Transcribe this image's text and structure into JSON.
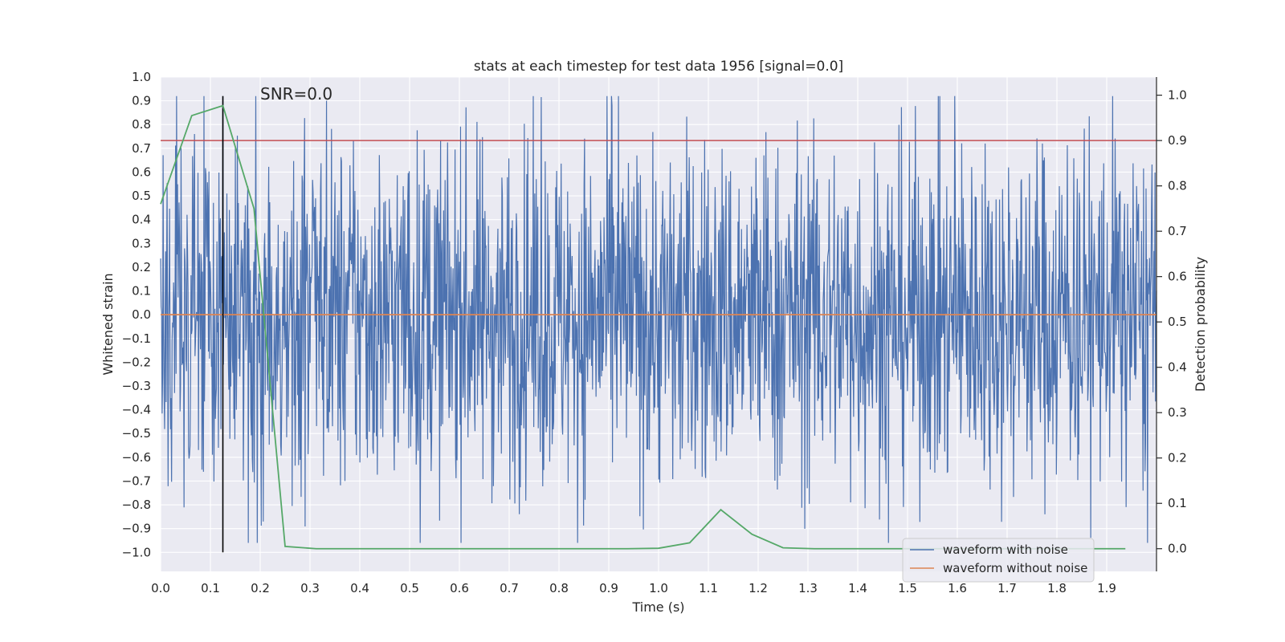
{
  "chart_data": {
    "type": "line",
    "title": "stats at each timestep for test data 1956 [signal=0.0]",
    "annotation": "SNR=0.0",
    "xlabel": "Time (s)",
    "ylabel_left": "Whitened strain",
    "ylabel_right": "Detection probability",
    "xlim": [
      0.0,
      2.0
    ],
    "ylim_left": [
      -1.08,
      1.0
    ],
    "ylim_right": [
      -0.05,
      1.04
    ],
    "x_ticks": [
      "0.0",
      "0.1",
      "0.2",
      "0.3",
      "0.4",
      "0.5",
      "0.6",
      "0.7",
      "0.8",
      "0.9",
      "1.0",
      "1.1",
      "1.2",
      "1.3",
      "1.4",
      "1.5",
      "1.6",
      "1.7",
      "1.8",
      "1.9"
    ],
    "y_left_ticks": [
      "1.0",
      "0.9",
      "0.8",
      "0.7",
      "0.6",
      "0.5",
      "0.4",
      "0.3",
      "0.2",
      "0.1",
      "0.0",
      "−0.1",
      "−0.2",
      "−0.3",
      "−0.4",
      "−0.5",
      "−0.6",
      "−0.7",
      "−0.8",
      "−0.9",
      "−1.0"
    ],
    "y_right_ticks": [
      "1.0",
      "0.9",
      "0.8",
      "0.7",
      "0.6",
      "0.5",
      "0.4",
      "0.3",
      "0.2",
      "0.1",
      "0.0"
    ],
    "grid": true,
    "legend_position": "bottom-right",
    "colors": {
      "noise": "#4c72b0",
      "clean": "#dd8452",
      "probability": "#55a868",
      "threshold": "#c44e52",
      "marker": "#000000",
      "background": "#eaeaf2",
      "grid": "#ffffff"
    },
    "series": [
      {
        "name": "waveform with noise",
        "axis": "left",
        "sample_count": 2000,
        "x_range": [
          0.0,
          2.0
        ],
        "value_range": [
          -0.96,
          0.92
        ],
        "note": "dense whitened-noise trace, values approximately within the observed range"
      },
      {
        "name": "waveform without noise",
        "axis": "left",
        "x": [
          0.0,
          2.0
        ],
        "values": [
          0.0,
          0.0
        ]
      },
      {
        "name": "detection probability",
        "axis": "right",
        "x": [
          0.0,
          0.0625,
          0.125,
          0.1875,
          0.25,
          0.3125,
          0.375,
          0.4375,
          0.5,
          0.5625,
          0.625,
          0.6875,
          0.75,
          0.8125,
          0.875,
          0.9375,
          1.0,
          1.0625,
          1.125,
          1.1875,
          1.25,
          1.3125,
          1.375,
          1.4375,
          1.5,
          1.5625,
          1.625,
          1.6875,
          1.75,
          1.8125,
          1.875,
          1.9375
        ],
        "values": [
          0.76,
          0.955,
          0.977,
          0.75,
          0.005,
          0.0,
          0.0,
          0.0,
          0.0,
          0.0,
          0.0,
          0.0,
          0.0,
          0.0,
          0.0,
          0.0,
          0.001,
          0.013,
          0.086,
          0.032,
          0.002,
          0.0,
          0.0,
          0.0,
          0.0,
          0.0,
          0.0,
          0.0,
          0.0,
          0.0,
          0.0,
          0.0
        ]
      }
    ],
    "threshold": {
      "axis": "right",
      "value": 0.9
    },
    "marker_line": {
      "x": 0.125,
      "y_range_left": [
        -1.0,
        0.92
      ]
    },
    "legend": [
      "waveform with noise",
      "waveform without noise"
    ]
  }
}
